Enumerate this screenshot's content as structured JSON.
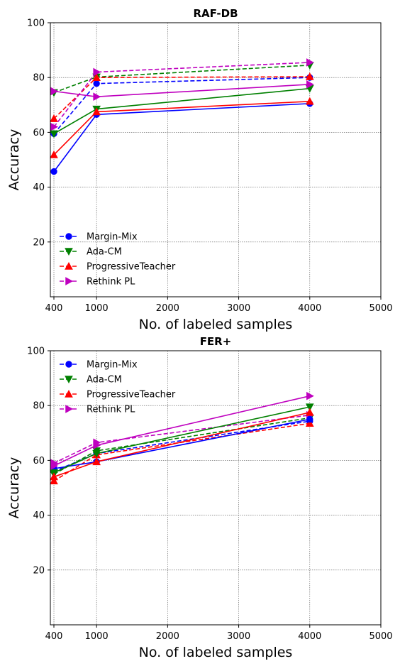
{
  "chart_data": [
    {
      "type": "line",
      "title": "RAF-DB",
      "xlabel": "No. of labeled samples",
      "ylabel": "Accuracy",
      "xlim": [
        350,
        5000
      ],
      "ylim": [
        0,
        100
      ],
      "xticks": [
        400,
        1000,
        2000,
        3000,
        4000,
        5000
      ],
      "yticks": [
        20,
        40,
        60,
        80,
        100
      ],
      "grid": true,
      "legend_position": "lower-left",
      "x": [
        400,
        1000,
        4000
      ],
      "series": [
        {
          "name": "Margin-Mix",
          "color": "#0000ff",
          "marker": "circle",
          "linestyle": "dashed",
          "values": [
            59.5,
            77.8,
            80.0
          ]
        },
        {
          "name": "Ada-CM",
          "color": "#008000",
          "marker": "triangle-down",
          "linestyle": "dashed",
          "values": [
            74.5,
            80.2,
            84.5
          ]
        },
        {
          "name": "ProgressiveTeacher",
          "color": "#ff0000",
          "marker": "triangle-up",
          "linestyle": "dashed",
          "values": [
            65.0,
            80.0,
            80.3
          ]
        },
        {
          "name": "Rethink PL",
          "color": "#bf00bf",
          "marker": "triangle-right",
          "linestyle": "dashed",
          "values": [
            62.0,
            82.0,
            85.5
          ]
        },
        {
          "name": "",
          "color": "#0000ff",
          "marker": "circle",
          "linestyle": "solid",
          "values": [
            45.7,
            66.5,
            70.5
          ]
        },
        {
          "name": "",
          "color": "#008000",
          "marker": "triangle-down",
          "linestyle": "solid",
          "values": [
            59.5,
            68.5,
            76.0
          ]
        },
        {
          "name": "",
          "color": "#ff0000",
          "marker": "triangle-up",
          "linestyle": "solid",
          "values": [
            51.8,
            67.5,
            71.3
          ]
        },
        {
          "name": "",
          "color": "#bf00bf",
          "marker": "triangle-right",
          "linestyle": "solid",
          "values": [
            75.0,
            73.0,
            77.5
          ]
        }
      ]
    },
    {
      "type": "line",
      "title": "FER+",
      "xlabel": "No. of labeled samples",
      "ylabel": "Accuracy",
      "xlim": [
        350,
        5000
      ],
      "ylim": [
        0,
        100
      ],
      "xticks": [
        400,
        1000,
        2000,
        3000,
        4000,
        5000
      ],
      "yticks": [
        20,
        40,
        60,
        80,
        100
      ],
      "grid": true,
      "legend_position": "upper-left",
      "x": [
        400,
        1000,
        4000
      ],
      "series": [
        {
          "name": "Margin-Mix",
          "color": "#0000ff",
          "marker": "circle",
          "linestyle": "dashed",
          "values": [
            56.0,
            62.5,
            74.3
          ]
        },
        {
          "name": "Ada-CM",
          "color": "#008000",
          "marker": "triangle-down",
          "linestyle": "dashed",
          "values": [
            55.0,
            63.5,
            75.5
          ]
        },
        {
          "name": "ProgressiveTeacher",
          "color": "#ff0000",
          "marker": "triangle-up",
          "linestyle": "dashed",
          "values": [
            52.5,
            62.0,
            73.5
          ]
        },
        {
          "name": "Rethink PL",
          "color": "#bf00bf",
          "marker": "triangle-right",
          "linestyle": "dashed",
          "values": [
            59.0,
            66.5,
            76.5
          ]
        },
        {
          "name": "",
          "color": "#0000ff",
          "marker": "circle",
          "linestyle": "solid",
          "values": [
            57.0,
            59.5,
            75.0
          ]
        },
        {
          "name": "",
          "color": "#008000",
          "marker": "triangle-down",
          "linestyle": "solid",
          "values": [
            55.5,
            62.5,
            79.5
          ]
        },
        {
          "name": "",
          "color": "#ff0000",
          "marker": "triangle-up",
          "linestyle": "solid",
          "values": [
            54.0,
            59.5,
            77.5
          ]
        },
        {
          "name": "",
          "color": "#bf00bf",
          "marker": "triangle-right",
          "linestyle": "solid",
          "values": [
            58.0,
            65.5,
            83.5
          ]
        }
      ]
    }
  ]
}
